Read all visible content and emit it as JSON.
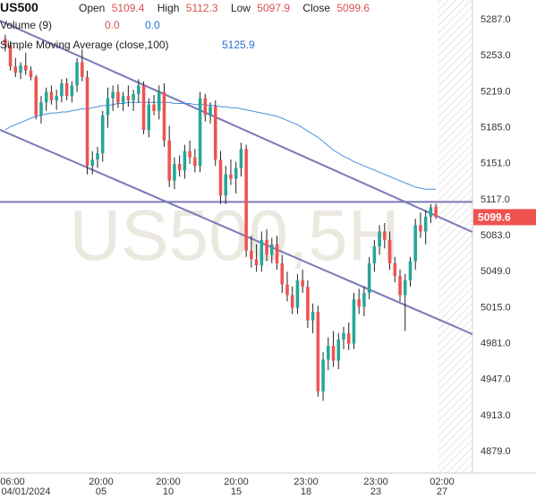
{
  "symbol": "US500",
  "legend": {
    "open_label": "Open",
    "open_value": "5109.4",
    "high_label": "High",
    "high_value": "5112.3",
    "low_label": "Low",
    "low_value": "5097.9",
    "close_label": "Close",
    "close_value": "5099.6",
    "volume_label": "Volume (9)",
    "volume_v1": "0.0",
    "volume_v2": "0.0",
    "sma_label": "Simple Moving Average (close,100)",
    "sma_value": "5125.9"
  },
  "watermark": "US500,5H",
  "price_badge": "5099.6",
  "colors": {
    "up": "#26a69a",
    "down": "#ef5350",
    "sma": "#4a90e2",
    "trendline": "#7b78b8",
    "badge": "#ef5350"
  },
  "chart_data": {
    "type": "candlestick",
    "y_ticks": [
      "5287.0",
      "5253.0",
      "5219.0",
      "5185.0",
      "5151.0",
      "5117.0",
      "5083.0",
      "5049.0",
      "5015.0",
      "4981.0",
      "4947.0",
      "4913.0",
      "4879.0"
    ],
    "x_ticks": [
      {
        "time": "06:00",
        "date": "04/01/2024"
      },
      {
        "time": "20:00",
        "date": "05"
      },
      {
        "time": "20:00",
        "date": "10"
      },
      {
        "time": "20:00",
        "date": "15"
      },
      {
        "time": "23:00",
        "date": "18"
      },
      {
        "time": "23:00",
        "date": "23"
      },
      {
        "time": "02:00",
        "date": "27"
      }
    ],
    "ylim": [
      4870,
      5305
    ],
    "candles": [
      [
        5268,
        5272,
        5256,
        5262
      ],
      [
        5262,
        5266,
        5238,
        5242
      ],
      [
        5242,
        5250,
        5232,
        5236
      ],
      [
        5236,
        5246,
        5230,
        5243
      ],
      [
        5243,
        5255,
        5234,
        5238
      ],
      [
        5238,
        5242,
        5229,
        5232
      ],
      [
        5232,
        5234,
        5192,
        5196
      ],
      [
        5196,
        5214,
        5188,
        5208
      ],
      [
        5208,
        5222,
        5200,
        5218
      ],
      [
        5218,
        5224,
        5206,
        5210
      ],
      [
        5210,
        5220,
        5201,
        5214
      ],
      [
        5214,
        5230,
        5208,
        5226
      ],
      [
        5226,
        5231,
        5210,
        5214
      ],
      [
        5214,
        5228,
        5208,
        5224
      ],
      [
        5224,
        5250,
        5218,
        5246
      ],
      [
        5246,
        5258,
        5228,
        5232
      ],
      [
        5232,
        5238,
        5140,
        5148
      ],
      [
        5148,
        5162,
        5140,
        5154
      ],
      [
        5154,
        5166,
        5146,
        5160
      ],
      [
        5160,
        5200,
        5152,
        5196
      ],
      [
        5196,
        5222,
        5184,
        5212
      ],
      [
        5212,
        5224,
        5200,
        5218
      ],
      [
        5218,
        5225,
        5203,
        5208
      ],
      [
        5208,
        5218,
        5200,
        5214
      ],
      [
        5214,
        5224,
        5204,
        5210
      ],
      [
        5210,
        5220,
        5200,
        5216
      ],
      [
        5216,
        5230,
        5208,
        5224
      ],
      [
        5224,
        5228,
        5178,
        5182
      ],
      [
        5182,
        5212,
        5175,
        5206
      ],
      [
        5206,
        5215,
        5196,
        5200
      ],
      [
        5200,
        5224,
        5192,
        5218
      ],
      [
        5218,
        5226,
        5166,
        5172
      ],
      [
        5172,
        5186,
        5128,
        5134
      ],
      [
        5134,
        5156,
        5126,
        5150
      ],
      [
        5150,
        5158,
        5138,
        5144
      ],
      [
        5144,
        5168,
        5136,
        5162
      ],
      [
        5162,
        5172,
        5150,
        5156
      ],
      [
        5156,
        5164,
        5142,
        5148
      ],
      [
        5148,
        5218,
        5142,
        5212
      ],
      [
        5212,
        5216,
        5190,
        5196
      ],
      [
        5196,
        5208,
        5188,
        5204
      ],
      [
        5204,
        5210,
        5148,
        5154
      ],
      [
        5154,
        5162,
        5112,
        5120
      ],
      [
        5120,
        5148,
        5112,
        5140
      ],
      [
        5140,
        5154,
        5130,
        5136
      ],
      [
        5136,
        5152,
        5122,
        5146
      ],
      [
        5146,
        5170,
        5138,
        5164
      ],
      [
        5164,
        5168,
        5062,
        5068
      ],
      [
        5068,
        5082,
        5052,
        5060
      ],
      [
        5060,
        5074,
        5048,
        5054
      ],
      [
        5054,
        5086,
        5048,
        5078
      ],
      [
        5078,
        5088,
        5058,
        5064
      ],
      [
        5064,
        5080,
        5056,
        5074
      ],
      [
        5074,
        5082,
        5050,
        5056
      ],
      [
        5056,
        5064,
        5028,
        5036
      ],
      [
        5036,
        5048,
        5020,
        5026
      ],
      [
        5026,
        5034,
        5008,
        5014
      ],
      [
        5014,
        5046,
        5008,
        5040
      ],
      [
        5040,
        5050,
        5028,
        5034
      ],
      [
        5034,
        5040,
        4995,
        5002
      ],
      [
        5002,
        5018,
        4990,
        5010
      ],
      [
        5010,
        5016,
        4930,
        4935
      ],
      [
        4935,
        4972,
        4926,
        4965
      ],
      [
        4965,
        4986,
        4955,
        4978
      ],
      [
        4978,
        4992,
        4958,
        4964
      ],
      [
        4964,
        4990,
        4956,
        4984
      ],
      [
        4984,
        4996,
        4975,
        4990
      ],
      [
        4990,
        5000,
        4974,
        4980
      ],
      [
        4980,
        5028,
        4975,
        5022
      ],
      [
        5022,
        5032,
        5008,
        5015
      ],
      [
        5015,
        5034,
        5006,
        5028
      ],
      [
        5028,
        5062,
        5022,
        5056
      ],
      [
        5056,
        5078,
        5048,
        5072
      ],
      [
        5072,
        5092,
        5064,
        5086
      ],
      [
        5086,
        5094,
        5070,
        5078
      ],
      [
        5078,
        5086,
        5050,
        5056
      ],
      [
        5056,
        5062,
        5038,
        5044
      ],
      [
        5044,
        5050,
        5020,
        5026
      ],
      [
        5026,
        5046,
        4992,
        5040
      ],
      [
        5040,
        5062,
        5034,
        5058
      ],
      [
        5058,
        5098,
        5050,
        5092
      ],
      [
        5092,
        5104,
        5080,
        5086
      ],
      [
        5086,
        5106,
        5074,
        5100
      ],
      [
        5100,
        5112,
        5094,
        5109
      ],
      [
        5109.4,
        5112.3,
        5097.9,
        5099.6
      ]
    ],
    "sma_series": [
      5182,
      5185,
      5187,
      5189,
      5191,
      5193,
      5195,
      5196,
      5197,
      5198,
      5198,
      5199,
      5199,
      5200,
      5201,
      5202,
      5202,
      5203,
      5204,
      5205,
      5205,
      5206,
      5207,
      5207,
      5208,
      5208,
      5208,
      5208,
      5208,
      5208,
      5208,
      5208,
      5208,
      5207,
      5207,
      5207,
      5207,
      5206,
      5206,
      5206,
      5205,
      5205,
      5204,
      5204,
      5203,
      5203,
      5202,
      5201,
      5200,
      5199,
      5198,
      5197,
      5196,
      5195,
      5193,
      5191,
      5189,
      5187,
      5184,
      5181,
      5178,
      5175,
      5171,
      5167,
      5163,
      5160,
      5157,
      5155,
      5152,
      5150,
      5148,
      5146,
      5144,
      5142,
      5140,
      5138,
      5136,
      5134,
      5132,
      5130,
      5128,
      5127,
      5126,
      5126,
      5125.9
    ],
    "horizontal_line": 5114,
    "trendline_upper": [
      [
        0,
        5283
      ],
      [
        84,
        5101
      ]
    ],
    "trendline_lower": [
      [
        0,
        5180
      ],
      [
        84,
        5004
      ]
    ]
  }
}
